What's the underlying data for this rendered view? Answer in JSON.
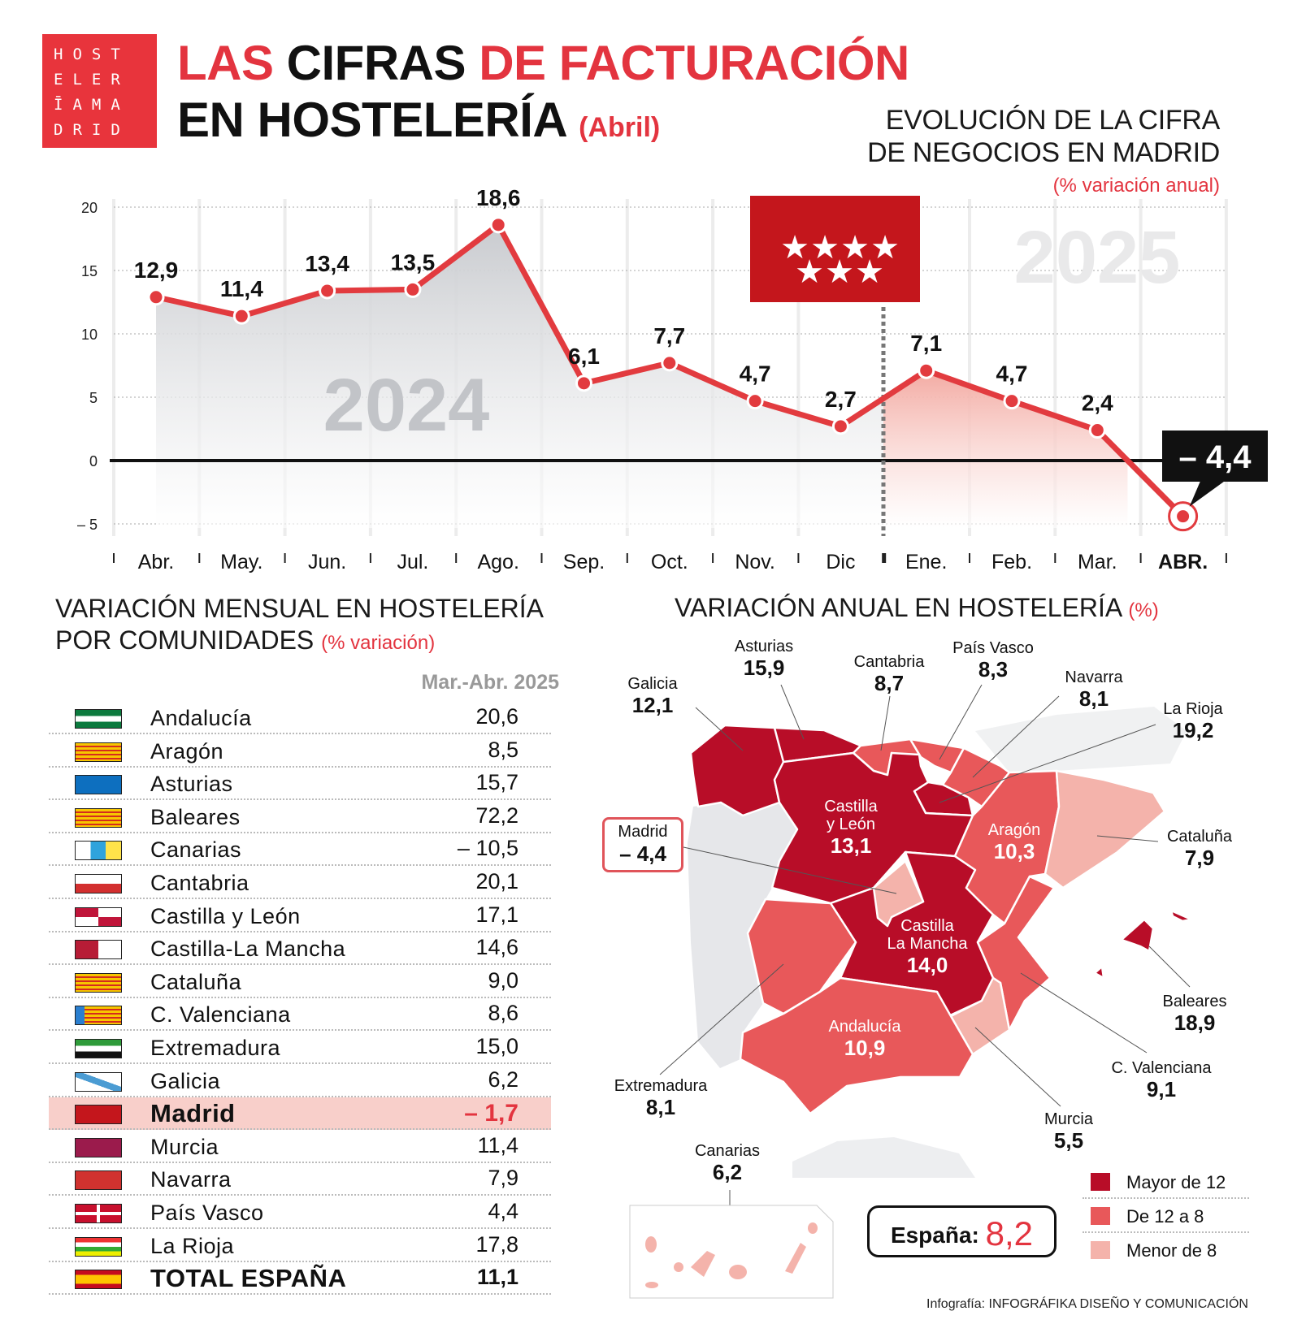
{
  "logo": {
    "lines": [
      "HOST",
      "ELER",
      "ĪAMA",
      "DRID"
    ]
  },
  "title": {
    "line1": [
      "LAS",
      "CIFRAS",
      "DE FACTURACIÓN"
    ],
    "line2": "EN HOSTELERÍA",
    "line2_sub": "(Abril)"
  },
  "chart_header": {
    "line1": "EVOLUCIÓN DE LA CIFRA",
    "line2": "DE NEGOCIOS EN MADRID",
    "unit": "(% variación anual)"
  },
  "colors": {
    "accent": "#e3343f",
    "line": "#e23b3f",
    "map_high": "#b80d28",
    "map_mid": "#e8585a",
    "map_low": "#f4b3ab",
    "madrid_flag": "#c4161c"
  },
  "chart_data": {
    "type": "line",
    "categories": [
      "Abr.",
      "May.",
      "Jun.",
      "Jul.",
      "Ago.",
      "Sep.",
      "Oct.",
      "Nov.",
      "Dic",
      "Ene.",
      "Feb.",
      "Mar.",
      "ABR."
    ],
    "values": [
      12.9,
      11.4,
      13.4,
      13.5,
      18.6,
      6.1,
      7.7,
      4.7,
      2.7,
      7.1,
      4.7,
      2.4,
      -4.4
    ],
    "data_labels": [
      "12,9",
      "11,4",
      "13,4",
      "13,5",
      "18,6",
      "6,1",
      "7,7",
      "4,7",
      "2,7",
      "7,1",
      "4,7",
      "2,4",
      "– 4,4"
    ],
    "year_labels": [
      "2024",
      "2025"
    ],
    "yticks": [
      20,
      15,
      10,
      5,
      0,
      -5
    ],
    "ytick_labels": [
      "20",
      "15",
      "10",
      "5",
      "0",
      "– 5"
    ],
    "ylim": [
      -5,
      20
    ],
    "grid": true,
    "xlabel": "",
    "ylabel": ""
  },
  "table": {
    "title_line1": "VARIACIÓN MENSUAL EN HOSTELERÍA",
    "title_line2": "POR COMUNIDADES",
    "unit": "(% variación)",
    "column": "Mar.-Abr. 2025",
    "rows": [
      {
        "name": "Andalucía",
        "value": "20,6",
        "flag": "and"
      },
      {
        "name": "Aragón",
        "value": "8,5",
        "flag": "ara"
      },
      {
        "name": "Asturias",
        "value": "15,7",
        "flag": "ast"
      },
      {
        "name": "Baleares",
        "value": "72,2",
        "flag": "bal"
      },
      {
        "name": "Canarias",
        "value": "– 10,5",
        "flag": "can"
      },
      {
        "name": "Cantabria",
        "value": "20,1",
        "flag": "cant"
      },
      {
        "name": "Castilla y León",
        "value": "17,1",
        "flag": "cyl"
      },
      {
        "name": "Castilla-La Mancha",
        "value": "14,6",
        "flag": "clm"
      },
      {
        "name": "Cataluña",
        "value": "9,0",
        "flag": "cat"
      },
      {
        "name": "C. Valenciana",
        "value": "8,6",
        "flag": "val"
      },
      {
        "name": "Extremadura",
        "value": "15,0",
        "flag": "ext"
      },
      {
        "name": "Galicia",
        "value": "6,2",
        "flag": "gal"
      },
      {
        "name": "Madrid",
        "value": "– 1,7",
        "flag": "mad",
        "highlight": true
      },
      {
        "name": "Murcia",
        "value": "11,4",
        "flag": "mur"
      },
      {
        "name": "Navarra",
        "value": "7,9",
        "flag": "nav"
      },
      {
        "name": "País Vasco",
        "value": "4,4",
        "flag": "pv"
      },
      {
        "name": "La Rioja",
        "value": "17,8",
        "flag": "rio"
      },
      {
        "name": "TOTAL ESPAÑA",
        "value": "11,1",
        "flag": "esp",
        "total": true
      }
    ]
  },
  "map": {
    "title": "VARIACIÓN ANUAL EN HOSTELERÍA",
    "unit": "(%)",
    "regions": {
      "galicia": {
        "name": "Galicia",
        "value": "12,1"
      },
      "asturias": {
        "name": "Asturias",
        "value": "15,9"
      },
      "cantabria": {
        "name": "Cantabria",
        "value": "8,7"
      },
      "pais_vasco": {
        "name": "País Vasco",
        "value": "8,3"
      },
      "navarra": {
        "name": "Navarra",
        "value": "8,1"
      },
      "la_rioja": {
        "name": "La Rioja",
        "value": "19,2"
      },
      "castilla_leon": {
        "name1": "Castilla",
        "name2": "y León",
        "value": "13,1"
      },
      "madrid": {
        "name": "Madrid",
        "value": "– 4,4"
      },
      "aragon": {
        "name": "Aragón",
        "value": "10,3"
      },
      "cataluna": {
        "name": "Cataluña",
        "value": "7,9"
      },
      "castilla_mancha": {
        "name1": "Castilla",
        "name2": "La Mancha",
        "value": "14,0"
      },
      "extremadura": {
        "name": "Extremadura",
        "value": "8,1"
      },
      "andalucia": {
        "name": "Andalucía",
        "value": "10,9"
      },
      "murcia": {
        "name": "Murcia",
        "value": "5,5"
      },
      "valenciana": {
        "name": "C. Valenciana",
        "value": "9,1"
      },
      "baleares": {
        "name": "Baleares",
        "value": "18,9"
      },
      "canarias": {
        "name": "Canarias",
        "value": "6,2"
      }
    },
    "spain_label": "España:",
    "spain_value": "8,2",
    "legend": [
      "Mayor de 12",
      "De 12 a 8",
      "Menor de 8"
    ]
  },
  "credit": {
    "prefix": "Infografía:",
    "name": "INFOGRÁFIKA DISEÑO Y COMUNICACIÓN"
  }
}
